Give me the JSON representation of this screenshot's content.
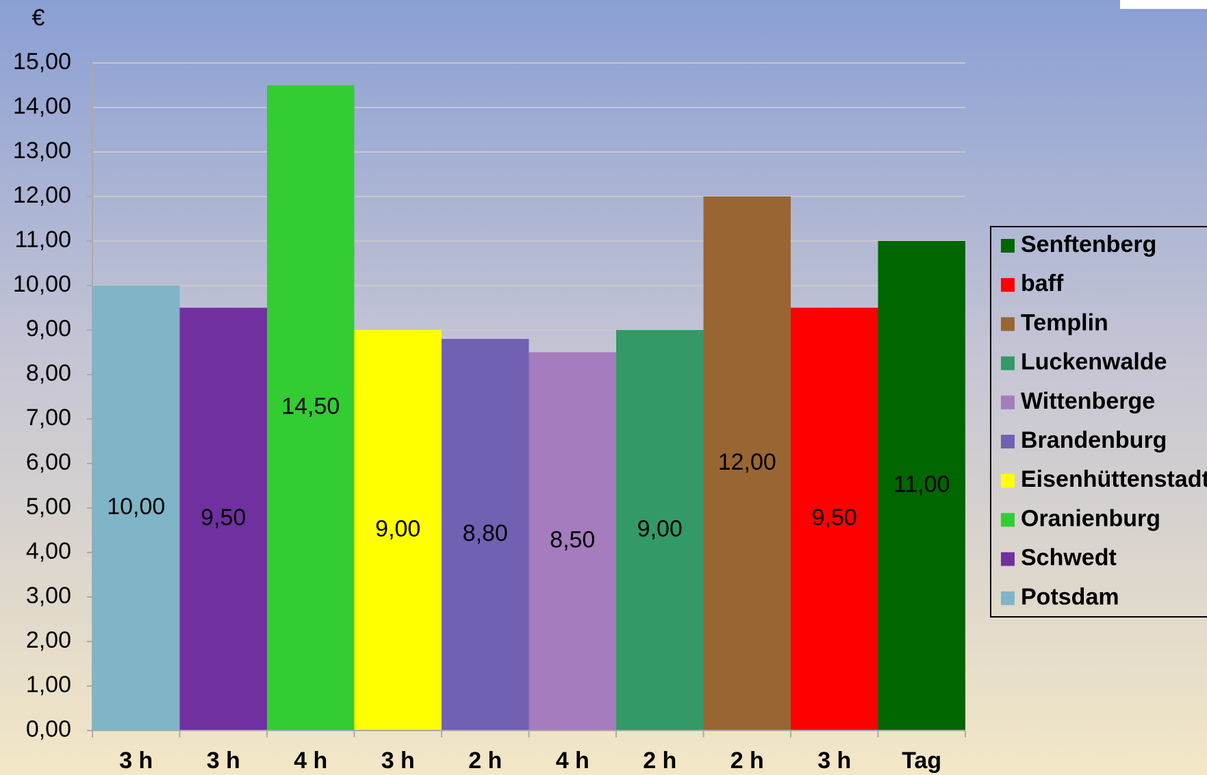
{
  "chart_data": {
    "type": "bar",
    "y_label": "€",
    "categories": [
      "3 h",
      "3 h",
      "4 h",
      "3 h",
      "2 h",
      "4 h",
      "2 h",
      "2 h",
      "3 h",
      "Tag"
    ],
    "values": [
      10,
      9.5,
      14.5,
      9,
      8.8,
      8.5,
      9,
      12,
      9.5,
      11
    ],
    "value_labels": [
      "10,00",
      "9,50",
      "14,50",
      "9,00",
      "8,80",
      "8,50",
      "9,00",
      "12,00",
      "9,50",
      "11,00"
    ],
    "names": [
      "Potsdam",
      "Schwedt",
      "Oranienburg",
      "Eisenhüttenstadt",
      "Brandenburg",
      "Wittenberge",
      "Luckenwalde",
      "Templin",
      "baff",
      "Senftenberg"
    ],
    "colors": [
      "#7fb5c6",
      "#7030a0",
      "#33cc33",
      "#ffff00",
      "#7260b2",
      "#a57cbd",
      "#339966",
      "#996633",
      "#ff0000",
      "#006600"
    ],
    "ylim": [
      0,
      15
    ],
    "yticks": [
      {
        "value": 0,
        "label": "0,00"
      },
      {
        "value": 1,
        "label": "1,00"
      },
      {
        "value": 2,
        "label": "2,00"
      },
      {
        "value": 3,
        "label": "3,00"
      },
      {
        "value": 4,
        "label": "4,00"
      },
      {
        "value": 5,
        "label": "5,00"
      },
      {
        "value": 6,
        "label": "6,00"
      },
      {
        "value": 7,
        "label": "7,00"
      },
      {
        "value": 8,
        "label": "8,00"
      },
      {
        "value": 9,
        "label": "9,00"
      },
      {
        "value": 10,
        "label": "10,00"
      },
      {
        "value": 11,
        "label": "11,00"
      },
      {
        "value": 12,
        "label": "12,00"
      },
      {
        "value": 13,
        "label": "13,00"
      },
      {
        "value": 14,
        "label": "14,00"
      },
      {
        "value": 15,
        "label": "15,00"
      }
    ],
    "grid": true,
    "legend": "right"
  }
}
